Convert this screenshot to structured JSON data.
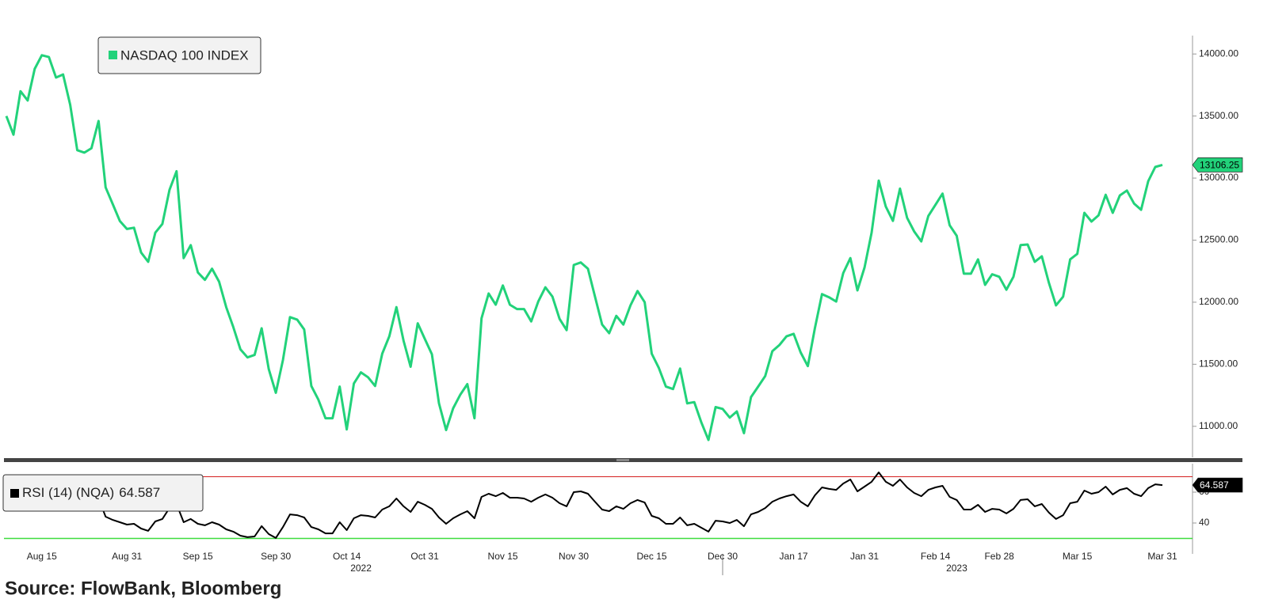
{
  "chart_data": [
    {
      "type": "line",
      "categories": [
        null,
        null,
        null,
        null,
        null,
        "Aug 15",
        null,
        null,
        null,
        null,
        null,
        null,
        null,
        null,
        null,
        null,
        null,
        "Aug 31",
        null,
        null,
        null,
        null,
        null,
        null,
        null,
        null,
        null,
        "Sep 15",
        null,
        null,
        null,
        null,
        null,
        null,
        null,
        null,
        null,
        null,
        "Sep 30",
        null,
        null,
        null,
        null,
        null,
        null,
        null,
        null,
        null,
        "Oct 14",
        null,
        null,
        null,
        null,
        null,
        null,
        null,
        null,
        null,
        null,
        "Oct 31",
        null,
        null,
        null,
        null,
        null,
        null,
        null,
        null,
        null,
        null,
        "Nov 15",
        null,
        null,
        null,
        null,
        null,
        null,
        null,
        null,
        null,
        "Nov 30",
        null,
        null,
        null,
        null,
        null,
        null,
        null,
        null,
        null,
        null,
        "Dec 15",
        null,
        null,
        null,
        null,
        null,
        null,
        null,
        null,
        null,
        "Dec 30",
        null,
        null,
        null,
        null,
        null,
        null,
        null,
        null,
        null,
        "Jan 17",
        null,
        null,
        null,
        null,
        null,
        null,
        null,
        null,
        null,
        "Jan 31",
        null,
        null,
        null,
        null,
        null,
        null,
        null,
        null,
        null,
        "Feb 14",
        null,
        null,
        null,
        null,
        null,
        null,
        null,
        null,
        "Feb 28",
        null,
        null,
        null,
        null,
        null,
        null,
        null,
        null,
        null,
        null,
        "Mar 15",
        null,
        null,
        null,
        null,
        null,
        null,
        null,
        null,
        null,
        null,
        null,
        "Mar 31"
      ],
      "years": [
        null,
        null,
        null,
        null,
        null,
        null,
        null,
        null,
        null,
        null,
        null,
        null,
        null,
        null,
        null,
        null,
        null,
        null,
        null,
        null,
        null,
        null,
        null,
        null,
        null,
        null,
        null,
        null,
        null,
        null,
        null,
        null,
        null,
        null,
        null,
        null,
        null,
        null,
        null,
        null,
        null,
        null,
        null,
        null,
        null,
        null,
        null,
        null,
        null,
        null,
        "2022",
        null,
        null,
        null,
        null,
        null,
        null,
        null,
        null,
        null,
        null,
        null,
        null,
        null,
        null,
        null,
        null,
        null,
        null,
        null,
        null,
        null,
        null,
        null,
        null,
        null,
        null,
        null,
        null,
        null,
        null,
        null,
        null,
        null,
        null,
        null,
        null,
        null,
        null,
        null,
        null,
        null,
        null,
        null,
        null,
        null,
        null,
        null,
        null,
        null,
        null,
        null,
        null,
        null,
        null,
        null,
        null,
        null,
        null,
        null,
        null,
        null,
        null,
        null,
        null,
        null,
        null,
        null,
        null,
        null,
        null,
        null,
        null,
        null,
        null,
        null,
        null,
        null,
        null,
        null,
        null,
        null,
        null,
        null,
        "2023",
        null,
        null,
        null,
        null,
        null,
        null,
        null,
        null,
        null,
        null,
        null,
        null,
        null,
        null,
        null,
        null,
        null,
        null,
        null,
        null,
        null,
        null,
        null,
        null,
        null,
        null,
        null,
        null,
        null
      ],
      "series": [
        {
          "name": "NASDAQ 100 INDEX",
          "color": "#22d27a",
          "values": [
            13500,
            13350,
            13700,
            13625,
            13880,
            13990,
            13975,
            13810,
            13835,
            13590,
            13225,
            13205,
            13240,
            13460,
            12925,
            12790,
            12655,
            12590,
            12600,
            12400,
            12325,
            12560,
            12630,
            12905,
            13055,
            12355,
            12460,
            12240,
            12180,
            12270,
            12165,
            11960,
            11800,
            11620,
            11555,
            11575,
            11790,
            11460,
            11270,
            11535,
            11880,
            11860,
            11780,
            11325,
            11215,
            11065,
            11065,
            11320,
            10975,
            11345,
            11435,
            11395,
            11325,
            11585,
            11725,
            11960,
            11690,
            11480,
            11830,
            11705,
            11580,
            11185,
            10970,
            11145,
            11255,
            11340,
            11065,
            11870,
            12070,
            11980,
            12135,
            11980,
            11945,
            11945,
            11845,
            12005,
            12120,
            12045,
            11865,
            11775,
            12300,
            12320,
            12270,
            12045,
            11820,
            11750,
            11890,
            11820,
            11975,
            12090,
            12000,
            11585,
            11470,
            11320,
            11300,
            11465,
            11185,
            11195,
            11030,
            10890,
            11155,
            11140,
            11070,
            11120,
            10945,
            11235,
            11320,
            11405,
            11605,
            11655,
            11725,
            11745,
            11595,
            11485,
            11790,
            12065,
            12040,
            12005,
            12235,
            12355,
            12095,
            12280,
            12560,
            12980,
            12770,
            12655,
            12915,
            12680,
            12570,
            12490,
            12695,
            12785,
            12875,
            12620,
            12535,
            12230,
            12230,
            12345,
            12140,
            12225,
            12205,
            12100,
            12205,
            12460,
            12465,
            12325,
            12370,
            12155,
            11975,
            12045,
            12345,
            12390,
            12720,
            12650,
            12700,
            12865,
            12720,
            12860,
            12900,
            12795,
            12745,
            12975,
            13090,
            13106.25
          ]
        }
      ],
      "ylim": [
        10750,
        14250
      ],
      "yticks": [
        {
          "value": 11000,
          "label": "11000.00"
        },
        {
          "value": 11500,
          "label": "11500.00"
        },
        {
          "value": 12000,
          "label": "12000.00"
        },
        {
          "value": 12500,
          "label": "12500.00"
        },
        {
          "value": 13000,
          "label": "13000.00"
        },
        {
          "value": 13500,
          "label": "13500.00"
        },
        {
          "value": 14000,
          "label": "14000.00"
        }
      ],
      "source": "Source: FlowBank, Bloomberg"
    },
    {
      "type": "line",
      "series": [
        {
          "name": "RSI (14) (NQA)",
          "color": "#000000",
          "values": [
            67.7,
            65.1,
            68.2,
            66.7,
            69.2,
            70.3,
            69.7,
            65.1,
            65.6,
            60,
            50.3,
            49.7,
            50.8,
            55.9,
            44.1,
            42,
            40.5,
            39,
            39.5,
            36.4,
            34.9,
            41,
            42.6,
            49.7,
            52.3,
            40.5,
            42.6,
            39.5,
            38.5,
            40.5,
            39,
            35.9,
            34.4,
            31.8,
            30.8,
            31.3,
            38,
            32.8,
            30.3,
            37.4,
            45.6,
            45.1,
            43.6,
            37.4,
            35.9,
            33.3,
            33.3,
            40.5,
            35.4,
            43.1,
            45.1,
            44.6,
            43.6,
            48.7,
            50.8,
            55.9,
            50.8,
            47.2,
            53.8,
            51.8,
            49.2,
            43.6,
            39.5,
            43.1,
            45.6,
            47.7,
            43.1,
            56.9,
            59,
            57.4,
            59.5,
            56.4,
            56.4,
            55.9,
            53.8,
            56.4,
            58.5,
            56.4,
            52.8,
            50.8,
            60,
            60.5,
            59,
            53.8,
            48.7,
            47.7,
            50.8,
            49.2,
            52.8,
            54.9,
            53.3,
            44.6,
            43.1,
            39.5,
            39.5,
            43.6,
            38.5,
            39.5,
            36.9,
            34.4,
            41.5,
            41,
            40,
            42,
            37.9,
            45.6,
            47.2,
            49.7,
            53.8,
            55.9,
            57.4,
            58.5,
            53.8,
            50.8,
            57.9,
            63.1,
            62.1,
            61.5,
            65.6,
            68.2,
            60.5,
            63.6,
            66.7,
            72.8,
            66.7,
            64.1,
            68.2,
            63.1,
            59.5,
            57.4,
            61.5,
            63.1,
            64.1,
            56.9,
            54.9,
            48.7,
            48.7,
            51.8,
            47.2,
            49.2,
            48.7,
            46.2,
            49.2,
            54.9,
            55.4,
            50.8,
            52.3,
            46.7,
            42.6,
            45.1,
            52.8,
            53.8,
            61,
            59,
            60,
            63.6,
            58.5,
            61.5,
            62.6,
            59,
            57.4,
            62.6,
            65.1,
            64.587
          ]
        }
      ],
      "ylim": [
        20,
        80
      ],
      "yticks": [
        40,
        60
      ],
      "overbought": 70,
      "overbought_color": "#d42020",
      "oversold": 30,
      "oversold_color": "#3ddc3d"
    }
  ]
}
